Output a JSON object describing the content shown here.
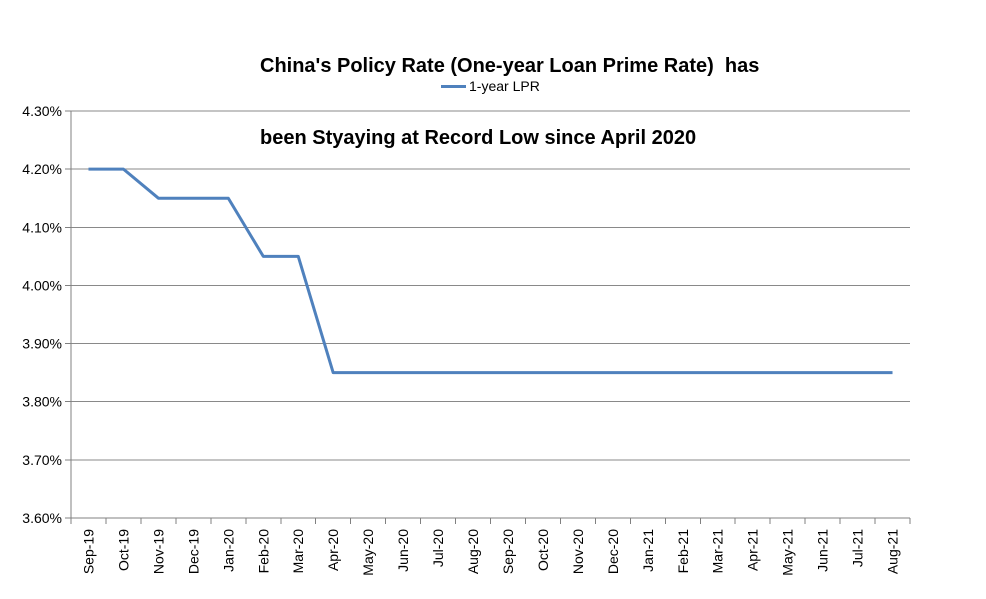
{
  "title": {
    "line1": "China's Policy Rate (One-year Loan Prime Rate)  has",
    "line2": "been Styaying at Record Low since April 2020"
  },
  "legend": {
    "label": "1-year LPR"
  },
  "chart_data": {
    "type": "line",
    "title": "China's Policy Rate (One-year Loan Prime Rate)  has been Styaying at Record Low since April 2020",
    "categories": [
      "Sep-19",
      "Oct-19",
      "Nov-19",
      "Dec-19",
      "Jan-20",
      "Feb-20",
      "Mar-20",
      "Apr-20",
      "May-20",
      "Jun-20",
      "Jul-20",
      "Aug-20",
      "Sep-20",
      "Oct-20",
      "Nov-20",
      "Dec-20",
      "Jan-21",
      "Feb-21",
      "Mar-21",
      "Apr-21",
      "May-21",
      "Jun-21",
      "Jul-21",
      "Aug-21"
    ],
    "series": [
      {
        "name": "1-year LPR",
        "values": [
          4.2,
          4.2,
          4.15,
          4.15,
          4.15,
          4.05,
          4.05,
          3.85,
          3.85,
          3.85,
          3.85,
          3.85,
          3.85,
          3.85,
          3.85,
          3.85,
          3.85,
          3.85,
          3.85,
          3.85,
          3.85,
          3.85,
          3.85,
          3.85
        ]
      }
    ],
    "ylim": [
      3.6,
      4.3
    ],
    "yticks": [
      {
        "value": 4.3,
        "label": "4.30%"
      },
      {
        "value": 4.2,
        "label": "4.20%"
      },
      {
        "value": 4.1,
        "label": "4.10%"
      },
      {
        "value": 4.0,
        "label": "4.00%"
      },
      {
        "value": 3.9,
        "label": "3.90%"
      },
      {
        "value": 3.8,
        "label": "3.80%"
      },
      {
        "value": 3.7,
        "label": "3.70%"
      },
      {
        "value": 3.6,
        "label": "3.60%"
      }
    ],
    "grid": "horizontal-on",
    "legend_position": "top-center",
    "colors": {
      "line": "#4F81BD",
      "grid": "#898989",
      "axis": "#808080",
      "text": "#000000",
      "background": "#FFFFFF"
    }
  }
}
